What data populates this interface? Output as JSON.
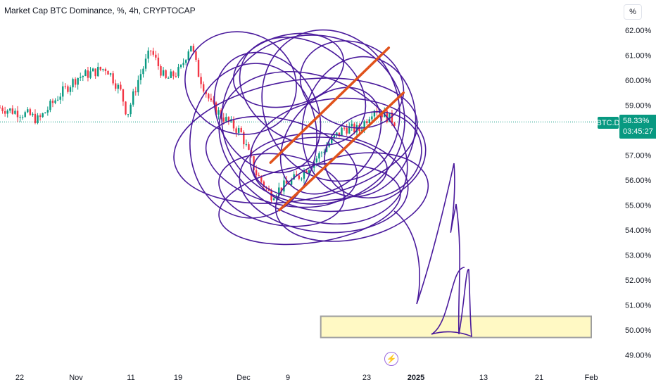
{
  "header": {
    "title": "Market Cap BTC Dominance, %, 4h, CRYPTOCAP",
    "unit_button": "%"
  },
  "price": {
    "symbol": "BTC.D",
    "last": "58.33%",
    "countdown": "03:45:27"
  },
  "colors": {
    "up": "#089981",
    "down": "#f23645",
    "drawing": "#4a1a9c",
    "trendline": "#e0521b",
    "box_fill": "#fff9c4",
    "box_border": "#9e9e9e"
  },
  "event_icon": "lightning-icon",
  "chart_data": {
    "type": "candlestick",
    "title": "Market Cap BTC Dominance, %, 4h, CRYPTOCAP",
    "y_axis": {
      "ticks": [
        "62.00%",
        "61.00%",
        "60.00%",
        "59.00%",
        "58.00%",
        "57.00%",
        "56.00%",
        "55.00%",
        "54.00%",
        "53.00%",
        "52.00%",
        "51.00%",
        "50.00%",
        "49.00%"
      ],
      "ylim": [
        48.6,
        62.6
      ]
    },
    "x_axis": {
      "ticks": [
        "22",
        "Nov",
        "11",
        "19",
        "Dec",
        "9",
        "23",
        "2025",
        "13",
        "21",
        "Feb"
      ]
    },
    "last_value": 58.33,
    "price_path": [
      [
        0,
        58.9
      ],
      [
        2,
        58.6
      ],
      [
        2.6,
        58.4
      ],
      [
        3.3,
        58.9
      ],
      [
        4,
        59.4
      ],
      [
        5.2,
        60.1
      ],
      [
        6.2,
        60.3
      ],
      [
        7.2,
        60.5
      ],
      [
        8.2,
        59.5
      ],
      [
        8.6,
        58.6
      ],
      [
        9.4,
        60.1
      ],
      [
        10.2,
        61.2
      ],
      [
        11.2,
        60.0
      ],
      [
        12.2,
        60.4
      ],
      [
        12.9,
        61.5
      ],
      [
        13.4,
        60.3
      ],
      [
        14.3,
        59.0
      ],
      [
        15.3,
        58.4
      ],
      [
        16.3,
        57.9
      ],
      [
        17.3,
        56.3
      ],
      [
        18.3,
        55.4
      ],
      [
        19.3,
        55.8
      ],
      [
        20.3,
        56.2
      ],
      [
        21.3,
        56.8
      ],
      [
        22.3,
        57.5
      ],
      [
        23.3,
        58.1
      ],
      [
        24.3,
        58.0
      ],
      [
        25.3,
        58.9
      ],
      [
        26.3,
        58.5
      ],
      [
        26.8,
        58.3
      ]
    ],
    "trendlines": [
      {
        "x1": 18.3,
        "y1": 56.7,
        "x2": 26.3,
        "y2": 61.3
      },
      {
        "x1": 18.9,
        "y1": 54.8,
        "x2": 27.3,
        "y2": 59.5
      }
    ],
    "target_zone": {
      "x1": 21.7,
      "x2": 40.0,
      "y1": 49.7,
      "y2": 50.55
    }
  }
}
